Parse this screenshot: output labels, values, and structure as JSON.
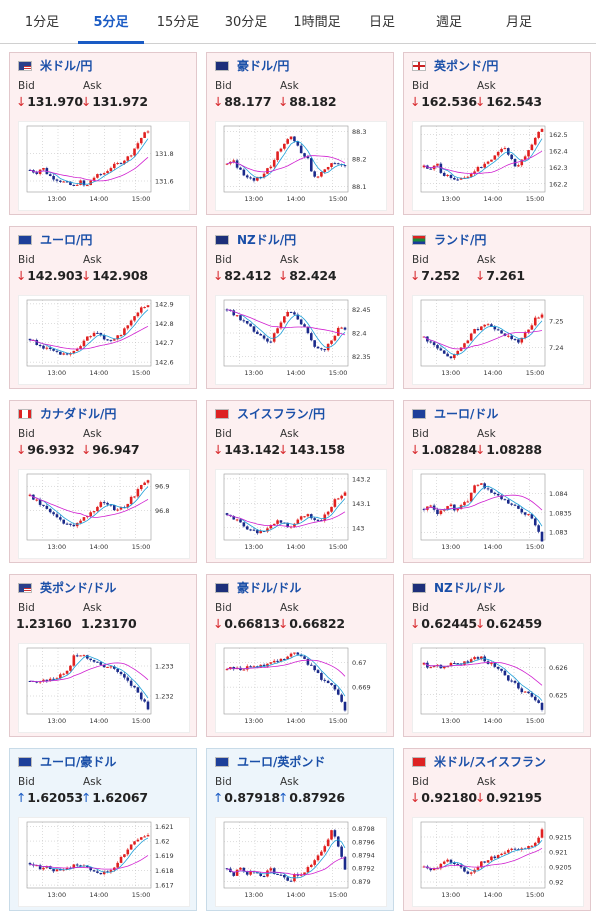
{
  "tabs": [
    "1分足",
    "5分足",
    "15分足",
    "30分足",
    "1時間足",
    "日足",
    "週足",
    "月足"
  ],
  "active_tab": 1,
  "bid_label": "Bid",
  "ask_label": "Ask",
  "colors": {
    "down_arrow": "#d8282c",
    "up_arrow": "#1a5bc4",
    "bull_candle": "#e02020",
    "bear_candle": "#1a2a8a",
    "ma_short": "#1fa0d8",
    "ma_long": "#d020d0"
  },
  "pairs": [
    {
      "name": "米ドル/円",
      "flag": "us",
      "dir": "down",
      "bid": "131.970",
      "ask": "131.972",
      "chart_data": {
        "type": "candlestick",
        "x_ticks": [
          "13:00",
          "14:00",
          "15:00"
        ],
        "y_ticks": [
          "131.8",
          "131.6"
        ],
        "ylim": [
          131.52,
          132.0
        ],
        "trend": [
          131.68,
          131.66,
          131.7,
          131.64,
          131.62,
          131.6,
          131.58,
          131.56,
          131.6,
          131.55,
          131.62,
          131.64,
          131.66,
          131.7,
          131.72,
          131.75,
          131.78,
          131.85,
          131.92,
          131.97
        ]
      }
    },
    {
      "name": "豪ドル/円",
      "flag": "au",
      "dir": "down",
      "bid": "88.177",
      "ask": "88.182",
      "chart_data": {
        "type": "candlestick",
        "x_ticks": [
          "13:00",
          "14:00",
          "15:00"
        ],
        "y_ticks": [
          "88.3",
          "88.2",
          "88.1"
        ],
        "ylim": [
          88.08,
          88.32
        ],
        "trend": [
          88.18,
          88.2,
          88.16,
          88.14,
          88.12,
          88.13,
          88.15,
          88.17,
          88.22,
          88.25,
          88.28,
          88.27,
          88.22,
          88.2,
          88.13,
          88.15,
          88.17,
          88.19,
          88.18,
          88.18
        ]
      }
    },
    {
      "name": "英ポンド/円",
      "flag": "gb",
      "dir": "down",
      "bid": "162.536",
      "ask": "162.543",
      "chart_data": {
        "type": "candlestick",
        "x_ticks": [
          "13:00",
          "14:00",
          "15:00"
        ],
        "y_ticks": [
          "162.5",
          "162.4",
          "162.3",
          "162.2"
        ],
        "ylim": [
          162.15,
          162.55
        ],
        "trend": [
          162.3,
          162.28,
          162.32,
          162.26,
          162.24,
          162.22,
          162.23,
          162.25,
          162.27,
          162.3,
          162.33,
          162.36,
          162.4,
          162.42,
          162.35,
          162.3,
          162.35,
          162.42,
          162.48,
          162.54
        ]
      }
    },
    {
      "name": "ユーロ/円",
      "flag": "eu",
      "dir": "down",
      "bid": "142.903",
      "ask": "142.908",
      "chart_data": {
        "type": "candlestick",
        "x_ticks": [
          "13:00",
          "14:00",
          "15:00"
        ],
        "y_ticks": [
          "142.9",
          "142.8",
          "142.7",
          "142.6"
        ],
        "ylim": [
          142.58,
          142.92
        ],
        "trend": [
          142.72,
          142.7,
          142.68,
          142.66,
          142.65,
          142.64,
          142.63,
          142.65,
          142.68,
          142.72,
          142.74,
          142.76,
          142.72,
          142.7,
          142.73,
          142.76,
          142.8,
          142.85,
          142.88,
          142.9
        ]
      }
    },
    {
      "name": "NZドル/円",
      "flag": "nz",
      "dir": "down",
      "bid": "82.412",
      "ask": "82.424",
      "chart_data": {
        "type": "candlestick",
        "x_ticks": [
          "13:00",
          "14:00",
          "15:00"
        ],
        "y_ticks": [
          "82.45",
          "82.4",
          "82.35"
        ],
        "ylim": [
          82.33,
          82.47
        ],
        "trend": [
          82.45,
          82.44,
          82.43,
          82.42,
          82.41,
          82.4,
          82.39,
          82.38,
          82.41,
          82.43,
          82.45,
          82.44,
          82.42,
          82.4,
          82.37,
          82.36,
          82.37,
          82.39,
          82.41,
          82.41
        ]
      }
    },
    {
      "name": "ランド/円",
      "flag": "za",
      "dir": "down",
      "bid": "7.252",
      "ask": "7.261",
      "chart_data": {
        "type": "candlestick",
        "x_ticks": [
          "13:00",
          "14:00",
          "15:00"
        ],
        "y_ticks": [
          "7.25",
          "7.24"
        ],
        "ylim": [
          7.233,
          7.258
        ],
        "trend": [
          7.244,
          7.242,
          7.24,
          7.238,
          7.236,
          7.237,
          7.24,
          7.243,
          7.246,
          7.248,
          7.249,
          7.248,
          7.247,
          7.245,
          7.243,
          7.242,
          7.244,
          7.248,
          7.251,
          7.253
        ]
      }
    },
    {
      "name": "カナダドル/円",
      "flag": "ca",
      "dir": "down",
      "bid": "96.932",
      "ask": "96.947",
      "chart_data": {
        "type": "candlestick",
        "x_ticks": [
          "13:00",
          "14:00",
          "15:00"
        ],
        "y_ticks": [
          "96.9",
          "96.8"
        ],
        "ylim": [
          96.68,
          96.95
        ],
        "trend": [
          96.86,
          96.84,
          96.82,
          96.8,
          96.78,
          96.76,
          96.74,
          96.73,
          96.75,
          96.78,
          96.8,
          96.82,
          96.84,
          96.82,
          96.8,
          96.81,
          96.84,
          96.87,
          96.9,
          96.93
        ]
      }
    },
    {
      "name": "スイスフラン/円",
      "flag": "ch",
      "dir": "down",
      "bid": "143.142",
      "ask": "143.158",
      "chart_data": {
        "type": "candlestick",
        "x_ticks": [
          "13:00",
          "14:00",
          "15:00"
        ],
        "y_ticks": [
          "143.2",
          "143.1",
          "143"
        ],
        "ylim": [
          142.95,
          143.22
        ],
        "trend": [
          143.06,
          143.04,
          143.02,
          143.0,
          142.99,
          142.98,
          142.99,
          143.01,
          143.03,
          143.02,
          143.0,
          143.02,
          143.04,
          143.06,
          143.03,
          143.02,
          143.06,
          143.1,
          143.13,
          143.15
        ]
      }
    },
    {
      "name": "ユーロ/ドル",
      "flag": "eu",
      "dir": "down",
      "bid": "1.08284",
      "ask": "1.08288",
      "chart_data": {
        "type": "candlestick",
        "x_ticks": [
          "13:00",
          "14:00",
          "15:00"
        ],
        "y_ticks": [
          "1.084",
          "1.0835",
          "1.083"
        ],
        "ylim": [
          1.0828,
          1.0845
        ],
        "trend": [
          1.0836,
          1.0837,
          1.0835,
          1.0836,
          1.0837,
          1.0836,
          1.0837,
          1.0838,
          1.0842,
          1.0843,
          1.0841,
          1.084,
          1.0839,
          1.0838,
          1.0837,
          1.0836,
          1.0835,
          1.0834,
          1.0832,
          1.0828
        ]
      }
    },
    {
      "name": "英ポンド/ドル",
      "flag": "us",
      "dir": "flat",
      "bid": "1.23160",
      "ask": "1.23170",
      "chart_data": {
        "type": "candlestick",
        "x_ticks": [
          "13:00",
          "14:00",
          "15:00"
        ],
        "y_ticks": [
          "1.233",
          "1.232"
        ],
        "ylim": [
          1.2314,
          1.2336
        ],
        "trend": [
          1.2325,
          1.2324,
          1.2326,
          1.2325,
          1.2326,
          1.2327,
          1.2328,
          1.2333,
          1.2334,
          1.2333,
          1.2332,
          1.2331,
          1.2329,
          1.233,
          1.2328,
          1.2326,
          1.2324,
          1.2322,
          1.2319,
          1.2316
        ]
      }
    },
    {
      "name": "豪ドル/ドル",
      "flag": "au",
      "dir": "down",
      "bid": "0.66813",
      "ask": "0.66822",
      "chart_data": {
        "type": "candlestick",
        "x_ticks": [
          "13:00",
          "14:00",
          "15:00"
        ],
        "y_ticks": [
          "0.67",
          "0.669"
        ],
        "ylim": [
          0.6679,
          0.6706
        ],
        "trend": [
          0.6697,
          0.6698,
          0.6697,
          0.6698,
          0.6699,
          0.6698,
          0.6699,
          0.67,
          0.6701,
          0.6702,
          0.6703,
          0.6704,
          0.6702,
          0.67,
          0.6697,
          0.6694,
          0.6692,
          0.669,
          0.6687,
          0.6681
        ]
      }
    },
    {
      "name": "NZドル/ドル",
      "flag": "nz",
      "dir": "down",
      "bid": "0.62445",
      "ask": "0.62459",
      "chart_data": {
        "type": "candlestick",
        "x_ticks": [
          "13:00",
          "14:00",
          "15:00"
        ],
        "y_ticks": [
          "0.626",
          "0.625"
        ],
        "ylim": [
          0.6243,
          0.6267
        ],
        "trend": [
          0.6261,
          0.626,
          0.6261,
          0.626,
          0.6261,
          0.6262,
          0.6261,
          0.6262,
          0.6263,
          0.6264,
          0.6262,
          0.6261,
          0.6259,
          0.6257,
          0.6255,
          0.6253,
          0.6251,
          0.625,
          0.6248,
          0.6245
        ]
      }
    },
    {
      "name": "ユーロ/豪ドル",
      "flag": "eu",
      "dir": "up",
      "bid": "1.62053",
      "ask": "1.62067",
      "chart_data": {
        "type": "candlestick",
        "x_ticks": [
          "13:00",
          "14:00",
          "15:00"
        ],
        "y_ticks": [
          "1.621",
          "1.62",
          "1.619",
          "1.618",
          "1.617"
        ],
        "ylim": [
          1.6168,
          1.6213
        ],
        "trend": [
          1.6185,
          1.6183,
          1.6181,
          1.6182,
          1.618,
          1.6179,
          1.6181,
          1.6183,
          1.6182,
          1.6183,
          1.618,
          1.6177,
          1.6179,
          1.6181,
          1.6184,
          1.619,
          1.6195,
          1.62,
          1.6203,
          1.6205
        ]
      }
    },
    {
      "name": "ユーロ/英ポンド",
      "flag": "eu",
      "dir": "up",
      "bid": "0.87918",
      "ask": "0.87926",
      "chart_data": {
        "type": "candlestick",
        "x_ticks": [
          "13:00",
          "14:00",
          "15:00"
        ],
        "y_ticks": [
          "0.8798",
          "0.8796",
          "0.8794",
          "0.8792",
          "0.879"
        ],
        "ylim": [
          0.8789,
          0.8799
        ],
        "trend": [
          0.8792,
          0.8791,
          0.8792,
          0.8791,
          0.8792,
          0.8791,
          0.8791,
          0.8792,
          0.8791,
          0.8791,
          0.879,
          0.8791,
          0.8791,
          0.8792,
          0.8793,
          0.8794,
          0.8796,
          0.8798,
          0.8795,
          0.8792
        ]
      }
    },
    {
      "name": "米ドル/スイスフラン",
      "flag": "ch",
      "dir": "down",
      "bid": "0.92180",
      "ask": "0.92195",
      "chart_data": {
        "type": "candlestick",
        "x_ticks": [
          "13:00",
          "14:00",
          "15:00"
        ],
        "y_ticks": [
          "0.9215",
          "0.921",
          "0.9205",
          "0.92"
        ],
        "ylim": [
          0.9198,
          0.922
        ],
        "trend": [
          0.9205,
          0.9204,
          0.9205,
          0.9206,
          0.9207,
          0.9206,
          0.9205,
          0.9203,
          0.9204,
          0.9206,
          0.9207,
          0.9208,
          0.9209,
          0.921,
          0.9211,
          0.921,
          0.9211,
          0.9212,
          0.9213,
          0.9218
        ]
      }
    }
  ]
}
